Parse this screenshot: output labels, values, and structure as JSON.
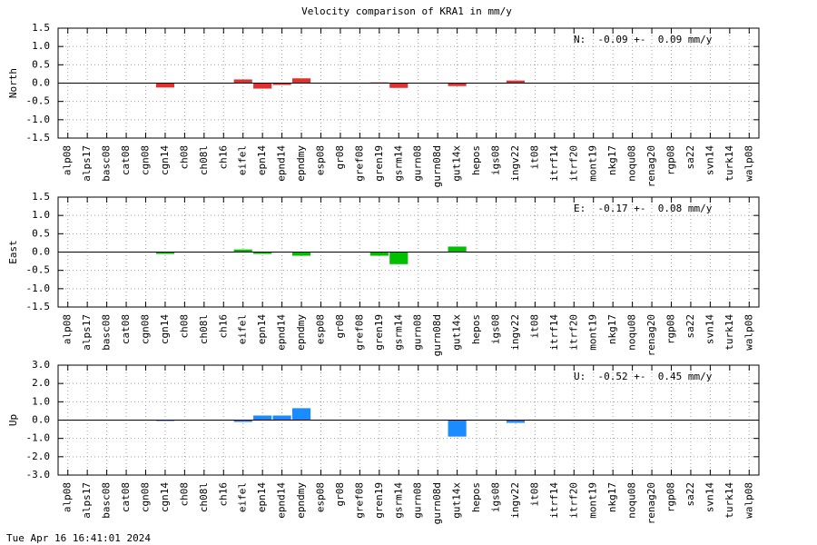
{
  "title": "Velocity comparison of KRA1 in mm/y",
  "footer": "Tue Apr 16 16:41:01 2024",
  "chart_data": [
    {
      "type": "bar",
      "ylabel": "North",
      "annotation": "N:  -0.09 +-  0.09 mm/y",
      "color": "#e03030",
      "grid": true,
      "categories": [
        "alp08",
        "alps17",
        "basc08",
        "cat08",
        "cgn08",
        "cgn14",
        "ch08",
        "ch08l",
        "ch16",
        "eifel",
        "epn14",
        "epnd14",
        "epndmy",
        "esp08",
        "gr08",
        "gref08",
        "gren19",
        "gsrm14",
        "gurn08",
        "gurn08d",
        "gut14x",
        "hepos",
        "igs08",
        "ingv22",
        "it08",
        "itrf14",
        "itrf20",
        "mont19",
        "nkg17",
        "noqu08",
        "renag20",
        "rgp08",
        "sa22",
        "svn14",
        "turk14",
        "walp08"
      ],
      "values": [
        null,
        null,
        null,
        null,
        null,
        -0.12,
        null,
        null,
        null,
        0.1,
        -0.15,
        -0.05,
        0.13,
        null,
        null,
        null,
        0.02,
        -0.13,
        null,
        null,
        -0.08,
        null,
        null,
        0.07,
        null,
        null,
        null,
        null,
        null,
        null,
        null,
        null,
        null,
        null,
        null,
        null
      ],
      "ylim": [
        -1.5,
        1.5
      ],
      "yticks": [
        -1.5,
        {
          "value": -1,
          "label": "-1.0"
        },
        -0.5,
        {
          "value": 0,
          "label": "0.0"
        },
        0.5,
        {
          "value": 1,
          "label": "1.0"
        },
        1.5
      ]
    },
    {
      "type": "bar",
      "ylabel": "East",
      "annotation": "E:  -0.17 +-  0.08 mm/y",
      "color": "#00c000",
      "grid": true,
      "categories": [
        "alp08",
        "alps17",
        "basc08",
        "cat08",
        "cgn08",
        "cgn14",
        "ch08",
        "ch08l",
        "ch16",
        "eifel",
        "epn14",
        "epnd14",
        "epndmy",
        "esp08",
        "gr08",
        "gref08",
        "gren19",
        "gsrm14",
        "gurn08",
        "gurn08d",
        "gut14x",
        "hepos",
        "igs08",
        "ingv22",
        "it08",
        "itrf14",
        "itrf20",
        "mont19",
        "nkg17",
        "noqu08",
        "renag20",
        "rgp08",
        "sa22",
        "svn14",
        "turk14",
        "walp08"
      ],
      "values": [
        null,
        null,
        null,
        null,
        null,
        -0.05,
        null,
        null,
        null,
        0.07,
        -0.05,
        null,
        -0.1,
        null,
        null,
        null,
        -0.1,
        -0.33,
        null,
        null,
        0.15,
        null,
        null,
        null,
        null,
        null,
        null,
        null,
        null,
        null,
        null,
        null,
        null,
        null,
        null,
        null
      ],
      "ylim": [
        -1.5,
        1.5
      ],
      "yticks": [
        -1.5,
        {
          "value": -1,
          "label": "-1.0"
        },
        -0.5,
        {
          "value": 0,
          "label": "0.0"
        },
        0.5,
        {
          "value": 1,
          "label": "1.0"
        },
        1.5
      ]
    },
    {
      "type": "bar",
      "ylabel": "Up",
      "annotation": "U:  -0.52 +-  0.45 mm/y",
      "color": "#1a8cff",
      "grid": true,
      "categories": [
        "alp08",
        "alps17",
        "basc08",
        "cat08",
        "cgn08",
        "cgn14",
        "ch08",
        "ch08l",
        "ch16",
        "eifel",
        "epn14",
        "epnd14",
        "epndmy",
        "esp08",
        "gr08",
        "gref08",
        "gren19",
        "gsrm14",
        "gurn08",
        "gurn08d",
        "gut14x",
        "hepos",
        "igs08",
        "ingv22",
        "it08",
        "itrf14",
        "itrf20",
        "mont19",
        "nkg17",
        "noqu08",
        "renag20",
        "rgp08",
        "sa22",
        "svn14",
        "turk14",
        "walp08"
      ],
      "values": [
        null,
        null,
        null,
        null,
        null,
        -0.05,
        null,
        null,
        null,
        -0.1,
        0.25,
        0.25,
        0.65,
        null,
        null,
        null,
        null,
        null,
        null,
        null,
        -0.9,
        null,
        null,
        -0.15,
        null,
        null,
        null,
        null,
        null,
        null,
        null,
        null,
        null,
        null,
        null,
        null
      ],
      "ylim": [
        -3,
        3
      ],
      "yticks": [
        {
          "value": -3,
          "label": "-3.0"
        },
        {
          "value": -2,
          "label": "-2.0"
        },
        {
          "value": -1,
          "label": "-1.0"
        },
        {
          "value": 0,
          "label": "0.0"
        },
        {
          "value": 1,
          "label": "1.0"
        },
        {
          "value": 2,
          "label": "2.0"
        },
        {
          "value": 3,
          "label": "3.0"
        }
      ]
    }
  ]
}
